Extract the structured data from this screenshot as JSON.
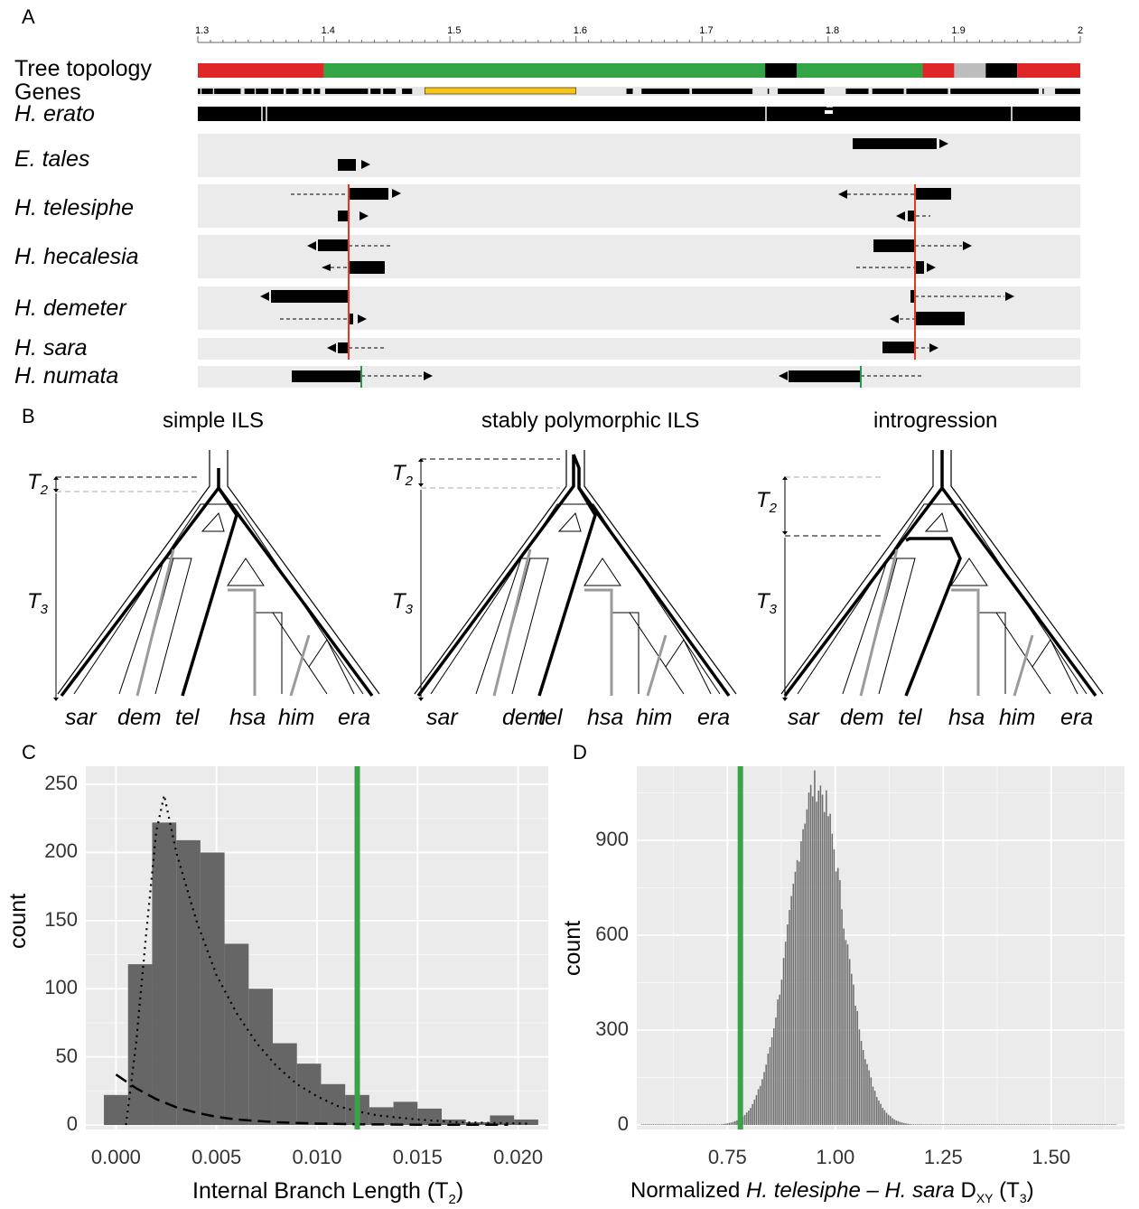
{
  "panels": {
    "a": "A",
    "b": "B",
    "c": "C",
    "d": "D"
  },
  "panel_a": {
    "scale_ticks": [
      "1.3",
      "1.4",
      "1.5",
      "1.6",
      "1.7",
      "1.8",
      "1.9",
      "2"
    ],
    "row_labels": {
      "topology": "Tree topology",
      "genes": "Genes"
    },
    "species": [
      "H. erato",
      "E. tales",
      "H. telesiphe",
      "H. hecalesia",
      "H. demeter",
      "H. sara",
      "H. numata"
    ],
    "topology_segments": [
      {
        "from": 1.3,
        "to": 1.4,
        "color": "#e02727"
      },
      {
        "from": 1.4,
        "to": 1.75,
        "color": "#34a547"
      },
      {
        "from": 1.75,
        "to": 1.775,
        "color": "#000000"
      },
      {
        "from": 1.775,
        "to": 1.875,
        "color": "#34a547"
      },
      {
        "from": 1.875,
        "to": 1.9,
        "color": "#e02727"
      },
      {
        "from": 1.9,
        "to": 1.925,
        "color": "#bdbdbd"
      },
      {
        "from": 1.925,
        "to": 1.95,
        "color": "#000000"
      },
      {
        "from": 1.95,
        "to": 2.0,
        "color": "#e02727"
      }
    ],
    "highlight_gene": {
      "from": 1.48,
      "to": 1.6,
      "color": "#f5c518"
    },
    "breakpoint_colors": {
      "red": "#e8371f",
      "green": "#1f9a4a"
    }
  },
  "panel_b": {
    "titles": [
      "simple ILS",
      "stably polymorphic ILS",
      "introgression"
    ],
    "tips": [
      "sar",
      "dem",
      "tel",
      "hsa",
      "him",
      "era"
    ],
    "t2": "T",
    "t2_sub": "2",
    "t3": "T",
    "t3_sub": "3"
  },
  "panel_c": {
    "ylabel": "count",
    "xlabel": "Internal Branch Length (T",
    "xlabel_sub": "2",
    "xlabel_end": ")",
    "yticks": [
      "0",
      "50",
      "100",
      "150",
      "200",
      "250"
    ],
    "xticks": [
      "0.000",
      "0.005",
      "0.010",
      "0.015",
      "0.020"
    ]
  },
  "panel_d": {
    "ylabel": "count",
    "xlabel_pre": "Normalized ",
    "xlabel_italic": "H. telesiphe – H. sara",
    "xlabel_mid": " D",
    "xlabel_sub": "XY",
    "xlabel_end": " (T",
    "xlabel_sub2": "3",
    "xlabel_close": ")",
    "yticks": [
      "0",
      "300",
      "600",
      "900"
    ],
    "xticks": [
      "0.75",
      "1.00",
      "1.25",
      "1.50"
    ]
  },
  "chart_data": [
    {
      "type": "bar",
      "panel": "C",
      "title": "",
      "xlabel": "Internal Branch Length (T2)",
      "ylabel": "count",
      "xlim": [
        -0.0015,
        0.0215
      ],
      "ylim": [
        0,
        260
      ],
      "bin_width": 0.0012,
      "bins": [
        {
          "x": 0.0,
          "count": 22
        },
        {
          "x": 0.0012,
          "count": 118
        },
        {
          "x": 0.0024,
          "count": 222
        },
        {
          "x": 0.0036,
          "count": 209
        },
        {
          "x": 0.0048,
          "count": 200
        },
        {
          "x": 0.006,
          "count": 133
        },
        {
          "x": 0.0072,
          "count": 100
        },
        {
          "x": 0.0084,
          "count": 60
        },
        {
          "x": 0.0096,
          "count": 45
        },
        {
          "x": 0.0108,
          "count": 30
        },
        {
          "x": 0.012,
          "count": 22
        },
        {
          "x": 0.0132,
          "count": 13
        },
        {
          "x": 0.0144,
          "count": 17
        },
        {
          "x": 0.0156,
          "count": 12
        },
        {
          "x": 0.0168,
          "count": 4
        },
        {
          "x": 0.018,
          "count": 2
        },
        {
          "x": 0.0192,
          "count": 7
        },
        {
          "x": 0.0204,
          "count": 4
        }
      ],
      "observed_line": {
        "x": 0.012,
        "color": "#3aa34a"
      },
      "curves": [
        {
          "style": "dotted",
          "points": [
            [
              0.0005,
              0
            ],
            [
              0.001,
              60
            ],
            [
              0.0015,
              140
            ],
            [
              0.002,
              215
            ],
            [
              0.0024,
              242
            ],
            [
              0.003,
              200
            ],
            [
              0.004,
              150
            ],
            [
              0.005,
              110
            ],
            [
              0.006,
              82
            ],
            [
              0.007,
              60
            ],
            [
              0.008,
              43
            ],
            [
              0.009,
              30
            ],
            [
              0.01,
              21
            ],
            [
              0.011,
              14
            ],
            [
              0.012,
              10
            ],
            [
              0.013,
              7
            ],
            [
              0.015,
              4
            ],
            [
              0.017,
              2
            ],
            [
              0.0205,
              1
            ]
          ]
        },
        {
          "style": "dashed",
          "points": [
            [
              0.0,
              37
            ],
            [
              0.001,
              27
            ],
            [
              0.002,
              19
            ],
            [
              0.003,
              13
            ],
            [
              0.004,
              9
            ],
            [
              0.005,
              6
            ],
            [
              0.006,
              4
            ],
            [
              0.008,
              2
            ],
            [
              0.01,
              1
            ],
            [
              0.012,
              0.5
            ],
            [
              0.015,
              0.2
            ],
            [
              0.0195,
              0.1
            ]
          ]
        }
      ]
    },
    {
      "type": "bar",
      "panel": "D",
      "title": "",
      "xlabel": "Normalized H. telesiphe – H. sara DXY (T3)",
      "ylabel": "count",
      "xlim": [
        0.54,
        1.67
      ],
      "ylim": [
        0,
        1120
      ],
      "distribution": {
        "shape": "normal",
        "mean": 0.955,
        "sd": 0.063,
        "peak_count": 1075,
        "min_x": 0.55,
        "max_x": 1.65
      },
      "observed_line": {
        "x": 0.78,
        "color": "#3aa34a"
      }
    }
  ]
}
